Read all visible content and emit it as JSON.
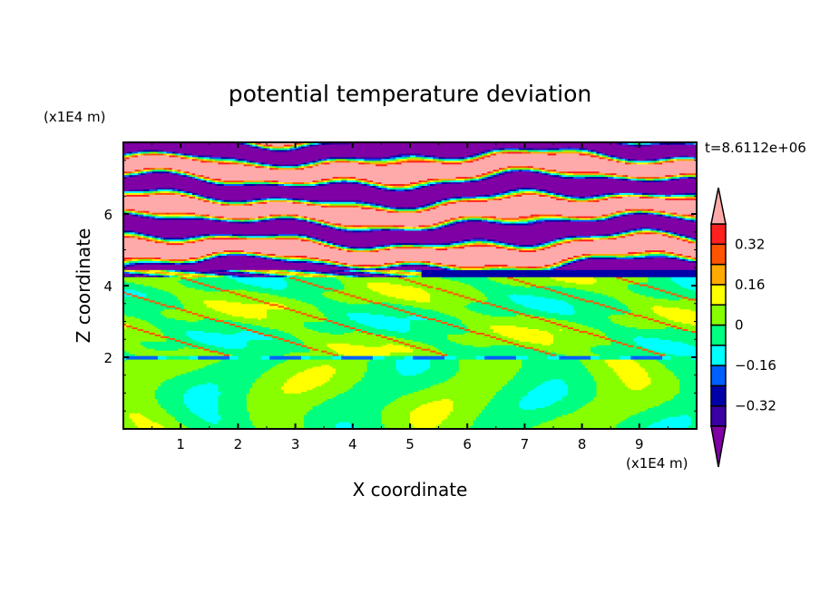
{
  "chart_data": {
    "type": "heatmap",
    "subtype": "filled contour",
    "title": "potential temperature deviation",
    "xlabel": "X coordinate",
    "ylabel": "Z coordinate",
    "x_unit": "(x1E4 m)",
    "y_unit": "(x1E4 m)",
    "time_label": "t=8.6112e+06",
    "xlim": [
      0,
      10
    ],
    "ylim": [
      0,
      8
    ],
    "x_ticks": [
      "1",
      "2",
      "3",
      "4",
      "5",
      "6",
      "7",
      "8",
      "9"
    ],
    "y_ticks": [
      "2",
      "4",
      "6"
    ],
    "grid": false,
    "legend": "right colorbar",
    "levels": [
      -0.4,
      -0.32,
      -0.24,
      -0.16,
      -0.08,
      0,
      0.08,
      0.16,
      0.24,
      0.32,
      0.4
    ],
    "colorbar_labels": [
      "0.32",
      "0.16",
      "0",
      "−0.16",
      "−0.32"
    ],
    "colorbar_label_values": [
      0.32,
      0.16,
      0,
      -0.16,
      -0.32
    ],
    "colors": {
      "below": "#7f00a4",
      "bins": [
        "#3a00a4",
        "#0000a8",
        "#0060ff",
        "#00ffff",
        "#00ff80",
        "#88ff00",
        "#ffff00",
        "#ffaa00",
        "#ff5500",
        "#ff2020"
      ],
      "above": "#ffaaaa"
    }
  }
}
